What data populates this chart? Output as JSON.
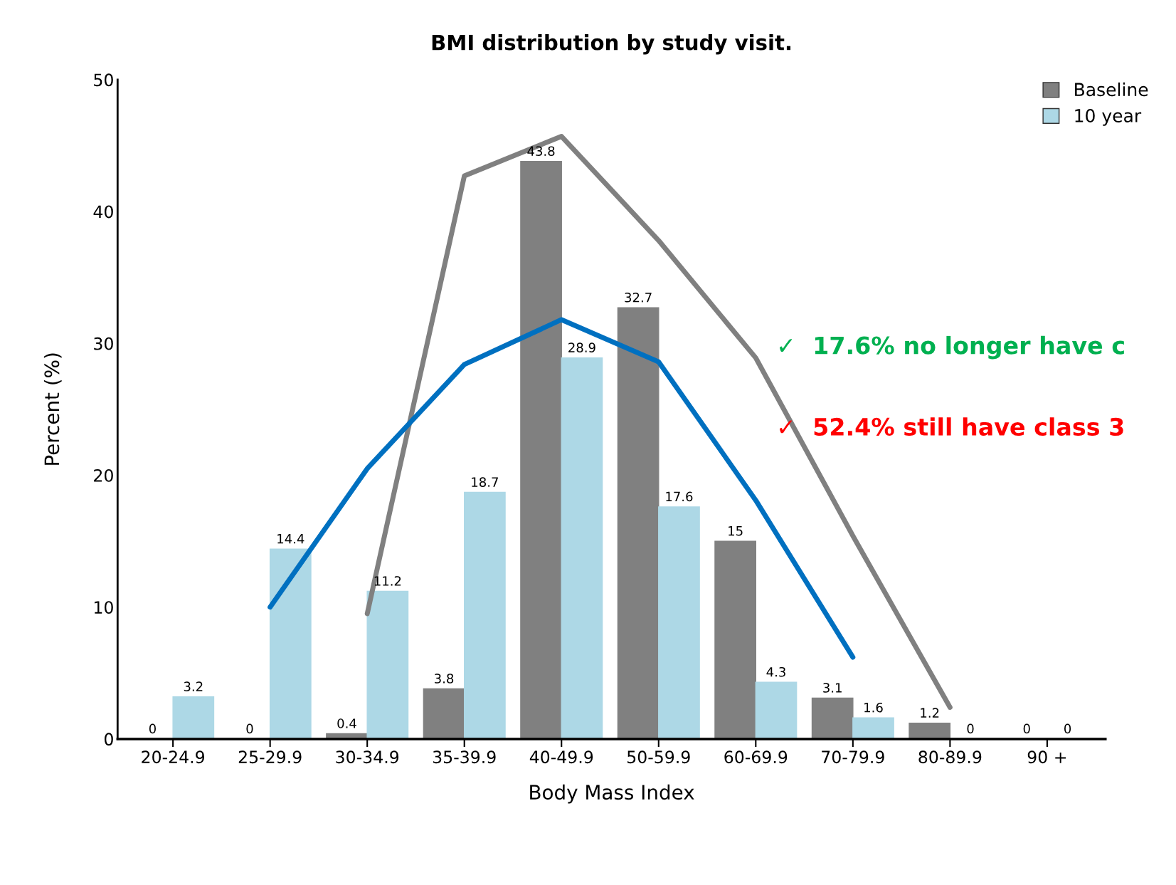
{
  "chart_data": {
    "type": "bar",
    "title": "BMI distribution by study visit.",
    "xlabel": "Body Mass Index",
    "ylabel": "Percent (%)",
    "categories": [
      "20-24.9",
      "25-29.9",
      "30-34.9",
      "35-39.9",
      "40-49.9",
      "50-59.9",
      "60-69.9",
      "70-79.9",
      "80-89.9",
      "90 +"
    ],
    "series": [
      {
        "name": "Baseline",
        "color": "#808080",
        "values": [
          0,
          0,
          0.4,
          3.8,
          43.8,
          32.7,
          15,
          3.1,
          1.2,
          0
        ],
        "value_labels": [
          "0",
          "0",
          "0.4",
          "3.8",
          "43.8",
          "32.7",
          "15",
          "3.1",
          "1.2",
          "0"
        ]
      },
      {
        "name": "10 year",
        "color": "#add8e6",
        "values": [
          3.2,
          14.4,
          11.2,
          18.7,
          28.9,
          17.6,
          4.3,
          1.6,
          0,
          0
        ],
        "value_labels": [
          "3.2",
          "14.4",
          "11.2",
          "18.7",
          "28.9",
          "17.6",
          "4.3",
          "1.6",
          "0",
          "0"
        ]
      },
      {
        "type": "line",
        "color": "#808080",
        "values": [
          null,
          null,
          9.5,
          42.7,
          45.7,
          37.8,
          28.9,
          15.4,
          2.4,
          null
        ]
      },
      {
        "type": "line",
        "color": "#0070c0",
        "values": [
          null,
          10,
          20.5,
          28.4,
          31.8,
          28.6,
          18.1,
          6.2,
          null,
          null
        ]
      }
    ],
    "ylim": [
      0,
      50
    ],
    "yticks": [
      0,
      10,
      20,
      30,
      40,
      50
    ],
    "grid": false,
    "legend": "top right",
    "annotations": [
      "✓  17.6% no longer have c",
      "✓  52.4% still have class 3"
    ]
  }
}
